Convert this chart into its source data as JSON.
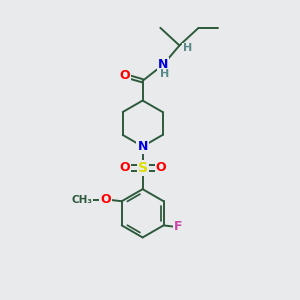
{
  "bg_color": "#e8eaeb",
  "bond_color": "#2d5a3d",
  "bond_width": 1.4,
  "atom_colors": {
    "O": "#ff0000",
    "N": "#0000dd",
    "S": "#dddd00",
    "F": "#cc44aa",
    "H": "#5a8a8a",
    "C": "#2d5a3d"
  },
  "font_size": 9
}
